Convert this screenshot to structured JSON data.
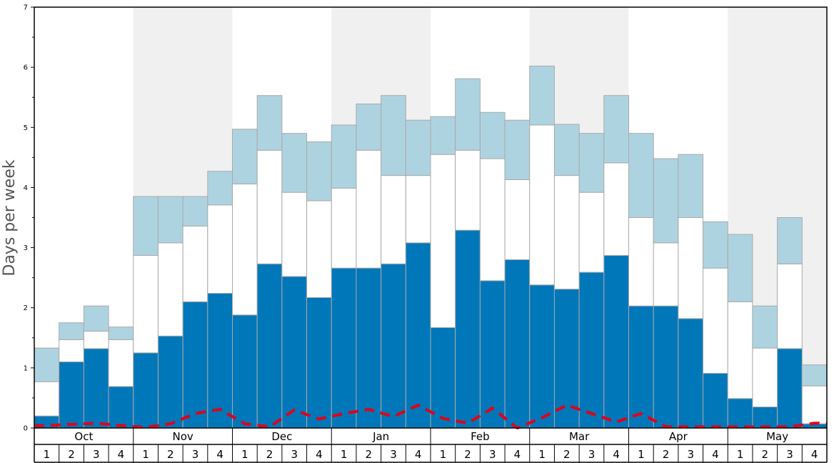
{
  "chart_data": {
    "type": "bar",
    "stacked": true,
    "ylabel": "Days per week",
    "ylim": [
      0,
      7
    ],
    "y_ticks": [
      "0",
      "1",
      "2",
      "3",
      "4",
      "5",
      "6",
      "7"
    ],
    "grid": false,
    "months": [
      "Oct",
      "Nov",
      "Dec",
      "Jan",
      "Feb",
      "Mar",
      "Apr",
      "May"
    ],
    "week_labels": [
      "1",
      "2",
      "3",
      "4"
    ],
    "colors": {
      "bottom": "#0077b8",
      "middle": "#ffffff",
      "top": "#aed3e0",
      "line": "#e0001a",
      "band": "#f0f0f0",
      "bar_border": "#a9a9a9"
    },
    "series": [
      {
        "role": "bottom",
        "values": [
          0.2,
          1.1,
          1.32,
          0.69,
          1.25,
          1.53,
          2.1,
          2.24,
          1.88,
          2.73,
          2.52,
          2.17,
          2.66,
          2.66,
          2.73,
          3.08,
          1.67,
          3.29,
          2.45,
          2.8,
          2.38,
          2.31,
          2.59,
          2.87,
          2.03,
          2.03,
          1.82,
          0.91,
          0.49,
          0.35,
          1.32,
          0.07
        ]
      },
      {
        "role": "middle",
        "values": [
          0.57,
          0.37,
          0.29,
          0.78,
          1.62,
          1.55,
          1.26,
          1.47,
          2.18,
          1.89,
          1.4,
          1.61,
          1.33,
          1.96,
          1.47,
          1.12,
          2.88,
          1.33,
          2.03,
          1.33,
          2.66,
          1.89,
          1.33,
          1.54,
          1.47,
          1.05,
          1.68,
          1.75,
          1.61,
          0.98,
          1.41,
          0.63
        ]
      },
      {
        "role": "top",
        "values": [
          0.56,
          0.28,
          0.42,
          0.21,
          0.98,
          0.77,
          0.49,
          0.56,
          0.91,
          0.91,
          0.98,
          0.98,
          1.05,
          0.77,
          1.33,
          0.92,
          0.63,
          1.19,
          0.77,
          0.99,
          0.98,
          0.85,
          0.98,
          1.12,
          1.4,
          1.4,
          1.05,
          0.77,
          1.12,
          0.7,
          0.77,
          0.35
        ]
      }
    ],
    "line": {
      "style": "dashed",
      "values": [
        0.04,
        0.06,
        0.08,
        0.04,
        0.01,
        0.07,
        0.24,
        0.31,
        0.07,
        0.02,
        0.3,
        0.15,
        0.24,
        0.31,
        0.19,
        0.38,
        0.16,
        0.08,
        0.33,
        0.0,
        0.17,
        0.38,
        0.24,
        0.1,
        0.24,
        0.02,
        0.02,
        0.02,
        0.02,
        0.02,
        0.02,
        0.08
      ]
    }
  }
}
